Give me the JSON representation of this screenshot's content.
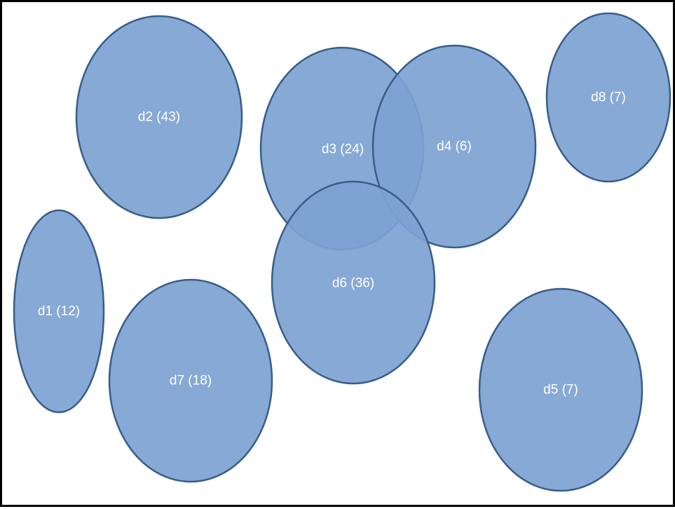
{
  "colors": {
    "fill": "#7da2d1",
    "fill_opacity": 0.92,
    "stroke": "#385d8a",
    "label": "#ffffff"
  },
  "sets": [
    {
      "id": "d1",
      "label": "d1 (12)"
    },
    {
      "id": "d2",
      "label": "d2 (43)"
    },
    {
      "id": "d3",
      "label": "d3 (24)"
    },
    {
      "id": "d4",
      "label": "d4 (6)"
    },
    {
      "id": "d5",
      "label": "d5 (7)"
    },
    {
      "id": "d6",
      "label": "d6 (36)"
    },
    {
      "id": "d7",
      "label": "d7 (18)"
    },
    {
      "id": "d8",
      "label": "d8 (7)"
    }
  ]
}
